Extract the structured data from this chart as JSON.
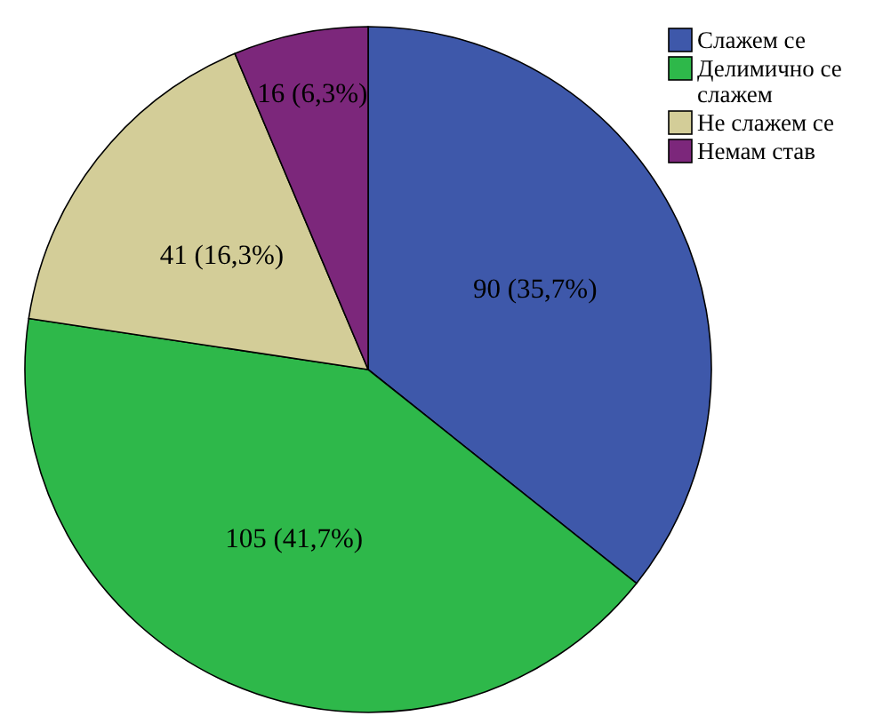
{
  "chart_data": {
    "type": "pie",
    "categories": [
      "Слажем се",
      "Делимично се слажем",
      "Не слажем се",
      "Немам став"
    ],
    "values": [
      90,
      105,
      41,
      16
    ],
    "colors": [
      "#3e58aa",
      "#2eb84a",
      "#d3cd98",
      "#7c277b"
    ],
    "value_labels": [
      "90 (35,7%)",
      "105 (41,7%)",
      "41 (16,3%)",
      "16 (6,3%)"
    ],
    "legend": "top right"
  }
}
